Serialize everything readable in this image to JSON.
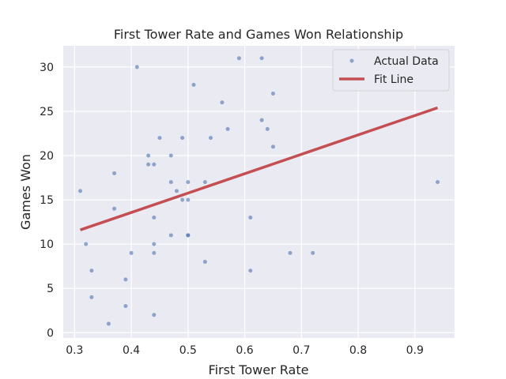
{
  "chart_data": {
    "type": "scatter",
    "title": "First Tower Rate and Games Won Relationship",
    "xlabel": "First Tower Rate",
    "ylabel": "Games Won",
    "xlim": [
      0.28,
      0.97
    ],
    "ylim": [
      -0.6,
      32.4
    ],
    "xticks": [
      0.3,
      0.4,
      0.5,
      0.6,
      0.7,
      0.8,
      0.9
    ],
    "yticks": [
      0,
      5,
      10,
      15,
      20,
      25,
      30
    ],
    "grid": true,
    "legend_position": "top-right",
    "series": [
      {
        "name": "Actual Data",
        "kind": "scatter",
        "color": "#4c72b0",
        "points": [
          [
            0.31,
            16
          ],
          [
            0.32,
            10
          ],
          [
            0.33,
            7
          ],
          [
            0.33,
            4
          ],
          [
            0.36,
            1
          ],
          [
            0.37,
            18
          ],
          [
            0.37,
            14
          ],
          [
            0.39,
            6
          ],
          [
            0.39,
            3
          ],
          [
            0.4,
            9
          ],
          [
            0.41,
            30
          ],
          [
            0.43,
            20
          ],
          [
            0.43,
            19
          ],
          [
            0.44,
            19
          ],
          [
            0.44,
            13
          ],
          [
            0.44,
            10
          ],
          [
            0.44,
            9
          ],
          [
            0.44,
            2
          ],
          [
            0.45,
            22
          ],
          [
            0.47,
            20
          ],
          [
            0.47,
            17
          ],
          [
            0.47,
            11
          ],
          [
            0.48,
            16
          ],
          [
            0.49,
            22
          ],
          [
            0.49,
            15
          ],
          [
            0.5,
            17
          ],
          [
            0.5,
            15
          ],
          [
            0.5,
            11
          ],
          [
            0.5,
            11
          ],
          [
            0.51,
            28
          ],
          [
            0.53,
            17
          ],
          [
            0.53,
            8
          ],
          [
            0.54,
            22
          ],
          [
            0.56,
            26
          ],
          [
            0.57,
            23
          ],
          [
            0.59,
            31
          ],
          [
            0.61,
            13
          ],
          [
            0.61,
            7
          ],
          [
            0.63,
            31
          ],
          [
            0.63,
            24
          ],
          [
            0.64,
            23
          ],
          [
            0.65,
            27
          ],
          [
            0.65,
            21
          ],
          [
            0.68,
            9
          ],
          [
            0.72,
            9
          ],
          [
            0.94,
            17
          ]
        ]
      },
      {
        "name": "Fit Line",
        "kind": "line",
        "color": "#c44e52",
        "points": [
          [
            0.31,
            11.6
          ],
          [
            0.94,
            25.4
          ]
        ]
      }
    ]
  }
}
